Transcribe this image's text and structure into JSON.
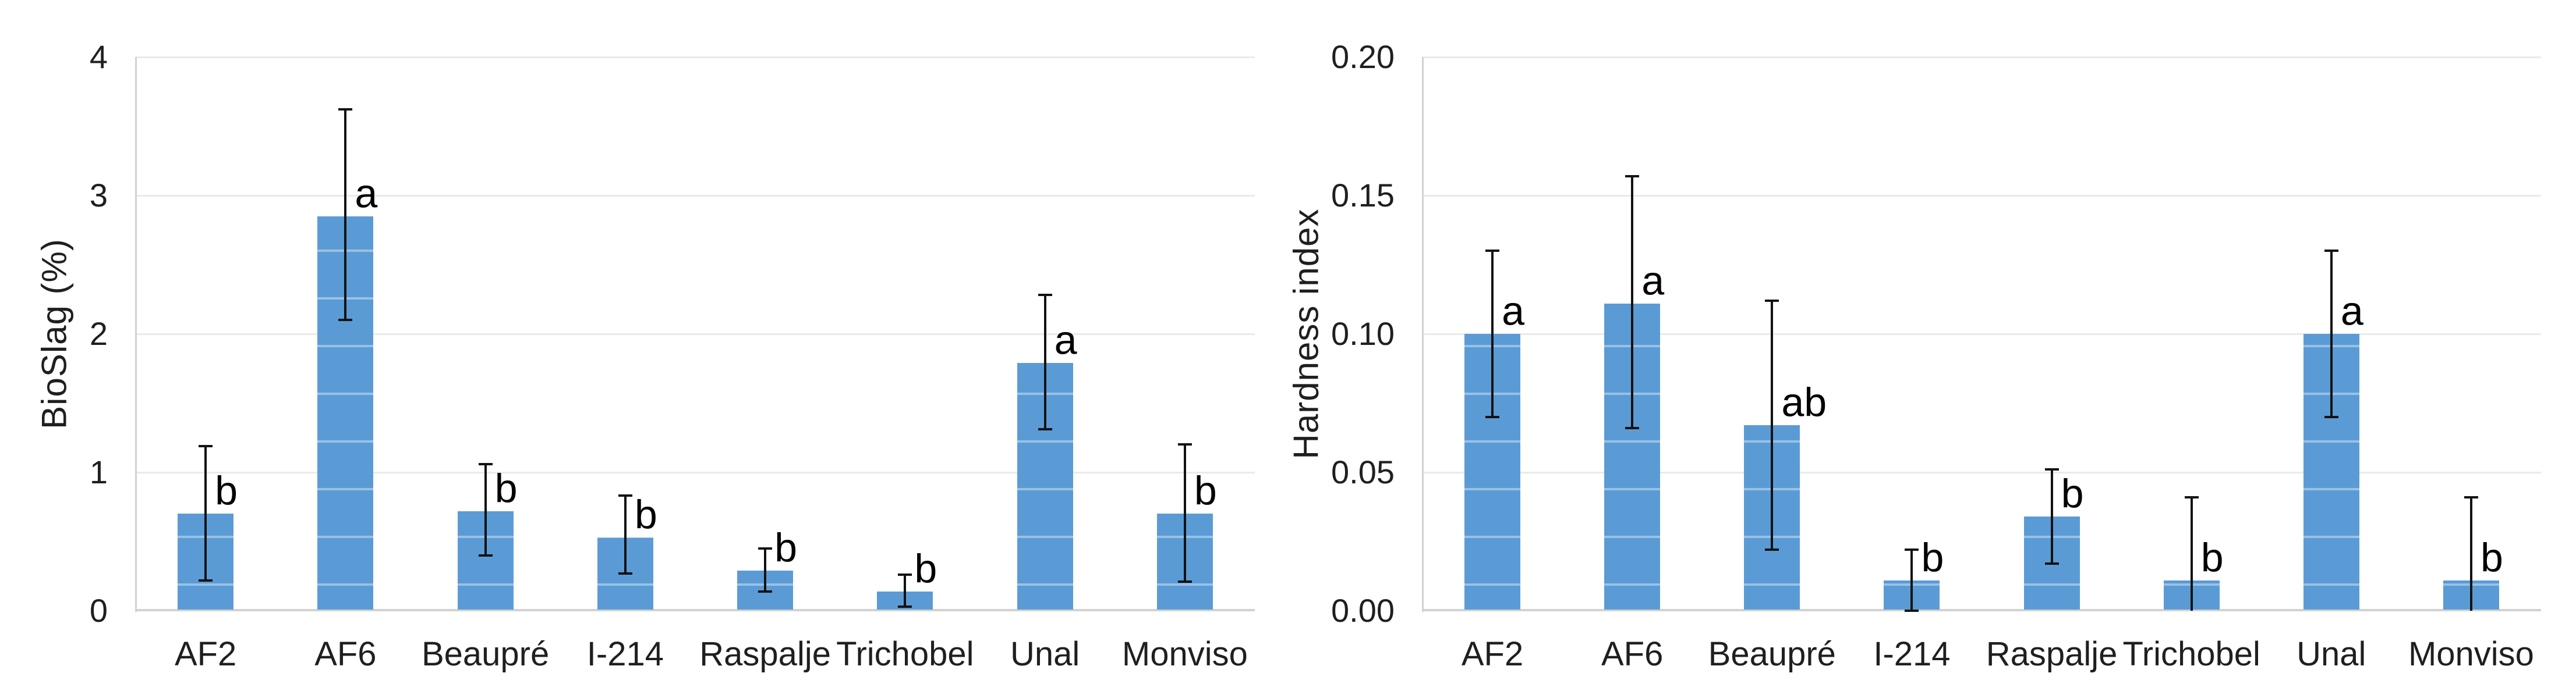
{
  "figure": {
    "description": "Two-panel bar chart comparing poplar cultivars",
    "background": "#ffffff"
  },
  "style": {
    "bar_color": "#5B9BD5",
    "grid_color": "#EAEAEA",
    "axis_color": "#D2D2D2",
    "error_color": "#121212",
    "text_color": "#1F1F1F"
  },
  "chart_data": [
    {
      "type": "bar",
      "title": "",
      "ylabel": "BioSlag (%)",
      "xlabel": "",
      "ymin": 0,
      "ymax": 4,
      "ytick_values": [
        0,
        1,
        2,
        3,
        4
      ],
      "ytick_labels": [
        "0",
        "1",
        "2",
        "3",
        "4"
      ],
      "grid": "horizontal",
      "legend": "none",
      "bar_color": "#5B9BD5",
      "categories": [
        "AF2",
        "AF6",
        "Beaupré",
        "I-214",
        "Raspalje",
        "Trichobel",
        "Unal",
        "Monviso"
      ],
      "bars": [
        {
          "category": "AF2",
          "value": 0.7,
          "err_low": 0.22,
          "err_high": 1.19,
          "letter": "b",
          "cap_low": true
        },
        {
          "category": "AF6",
          "value": 2.85,
          "err_low": 2.1,
          "err_high": 3.62,
          "letter": "a",
          "cap_low": true
        },
        {
          "category": "Beaupré",
          "value": 0.72,
          "err_low": 0.4,
          "err_high": 1.06,
          "letter": "b",
          "cap_low": true
        },
        {
          "category": "I-214",
          "value": 0.53,
          "err_low": 0.27,
          "err_high": 0.83,
          "letter": "b",
          "cap_low": true
        },
        {
          "category": "Raspalje",
          "value": 0.29,
          "err_low": 0.14,
          "err_high": 0.45,
          "letter": "b",
          "cap_low": true
        },
        {
          "category": "Trichobel",
          "value": 0.14,
          "err_low": 0.03,
          "err_high": 0.26,
          "letter": "b",
          "cap_low": true
        },
        {
          "category": "Unal",
          "value": 1.79,
          "err_low": 1.31,
          "err_high": 2.28,
          "letter": "a",
          "cap_low": true
        },
        {
          "category": "Monviso",
          "value": 0.7,
          "err_low": 0.21,
          "err_high": 1.2,
          "letter": "b",
          "cap_low": true
        }
      ]
    },
    {
      "type": "bar",
      "title": "",
      "ylabel": "Hardness index",
      "xlabel": "",
      "ymin": 0,
      "ymax": 0.2,
      "ytick_values": [
        0,
        0.05,
        0.1,
        0.15,
        0.2
      ],
      "ytick_labels": [
        "0.00",
        "0.05",
        "0.10",
        "0.15",
        "0.20"
      ],
      "grid": "horizontal",
      "legend": "none",
      "bar_color": "#5B9BD5",
      "categories": [
        "AF2",
        "AF6",
        "Beaupré",
        "I-214",
        "Raspalje",
        "Trichobel",
        "Unal",
        "Monviso"
      ],
      "bars": [
        {
          "category": "AF2",
          "value": 0.1,
          "err_low": 0.07,
          "err_high": 0.13,
          "letter": "a",
          "cap_low": true
        },
        {
          "category": "AF6",
          "value": 0.111,
          "err_low": 0.066,
          "err_high": 0.157,
          "letter": "a",
          "cap_low": true
        },
        {
          "category": "Beaupré",
          "value": 0.067,
          "err_low": 0.022,
          "err_high": 0.112,
          "letter": "ab",
          "cap_low": true
        },
        {
          "category": "I-214",
          "value": 0.011,
          "err_low": 0.0,
          "err_high": 0.022,
          "letter": "b",
          "cap_low": true
        },
        {
          "category": "Raspalje",
          "value": 0.034,
          "err_low": 0.017,
          "err_high": 0.051,
          "letter": "b",
          "cap_low": true
        },
        {
          "category": "Trichobel",
          "value": 0.011,
          "err_low": 0.0,
          "err_high": 0.041,
          "letter": "b",
          "cap_low": false
        },
        {
          "category": "Unal",
          "value": 0.1,
          "err_low": 0.07,
          "err_high": 0.13,
          "letter": "a",
          "cap_low": true
        },
        {
          "category": "Monviso",
          "value": 0.011,
          "err_low": 0.0,
          "err_high": 0.041,
          "letter": "b",
          "cap_low": false
        }
      ]
    }
  ]
}
